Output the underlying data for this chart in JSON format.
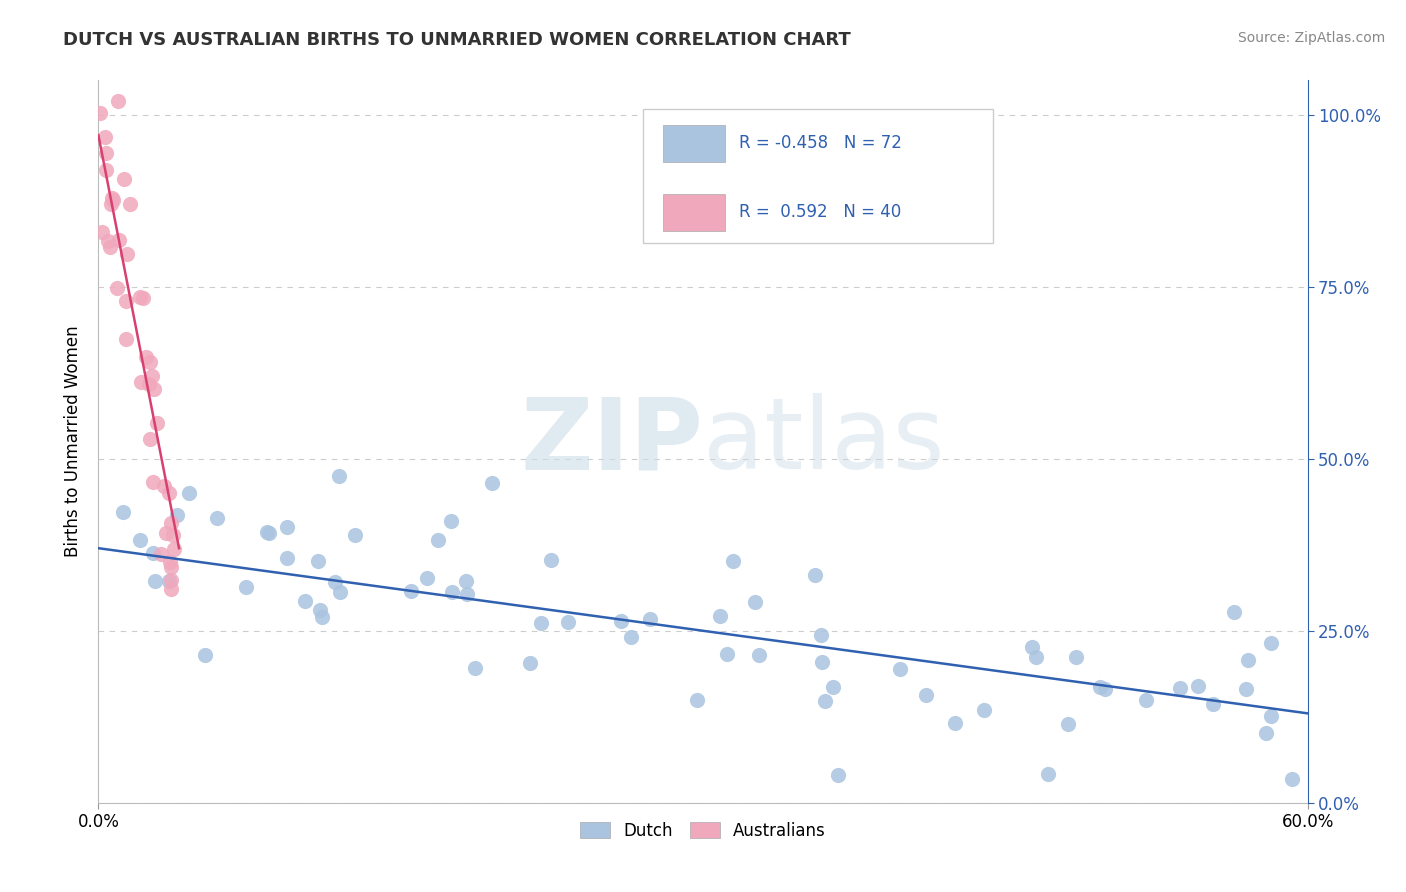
{
  "title": "DUTCH VS AUSTRALIAN BIRTHS TO UNMARRIED WOMEN CORRELATION CHART",
  "source": "Source: ZipAtlas.com",
  "ylabel": "Births to Unmarried Women",
  "legend_dutch": "Dutch",
  "legend_aus": "Australians",
  "R_dutch": -0.458,
  "N_dutch": 72,
  "R_aus": 0.592,
  "N_aus": 40,
  "dutch_color": "#aac4e0",
  "aus_color": "#f0a8bc",
  "dutch_line_color": "#3060b0",
  "aus_line_color": "#d84070",
  "title_color": "#333333",
  "source_color": "#888888",
  "ytick_color": "#3060b0",
  "grid_color": "#cccccc",
  "xlim": [
    0.0,
    0.6
  ],
  "ylim": [
    0.0,
    1.05
  ],
  "dutch_line_x0": 0.0,
  "dutch_line_x1": 0.6,
  "dutch_line_y0": 0.37,
  "dutch_line_y1": 0.13,
  "aus_line_x0": 0.0,
  "aus_line_x1": 0.04,
  "aus_line_y0": 0.97,
  "aus_line_y1": 0.37
}
